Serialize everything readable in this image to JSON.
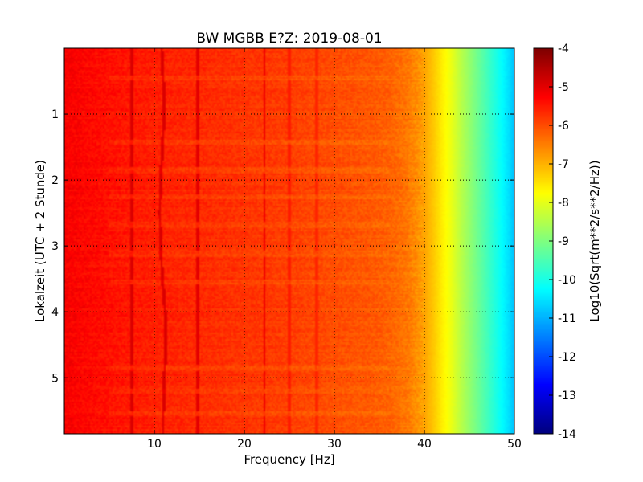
{
  "chart_data": {
    "type": "heatmap",
    "title": "BW MGBB E?Z: 2019-08-01",
    "xlabel": "Frequency [Hz]",
    "ylabel": "Lokalzeit (UTC + 2 Stunde)",
    "colorbar_label": "Log10(Sqrt(m**2/s**2/Hz))",
    "colormap": "jet",
    "xlim": [
      0,
      50
    ],
    "ylim": [
      5.85,
      0
    ],
    "clim": [
      -14,
      -4
    ],
    "x_ticks": [
      "10",
      "20",
      "30",
      "40",
      "50"
    ],
    "y_ticks": [
      "1",
      "2",
      "3",
      "4",
      "5"
    ],
    "colorbar_ticks": [
      "-4",
      "-5",
      "-6",
      "-7",
      "-8",
      "-9",
      "-10",
      "-11",
      "-12",
      "-13",
      "-14"
    ],
    "grid": true,
    "profile": {
      "frequency_hz": [
        0,
        5,
        10,
        15,
        20,
        25,
        30,
        34,
        36,
        38,
        39,
        40,
        41,
        42,
        43,
        44,
        45,
        46,
        47,
        48,
        49,
        49.5,
        50
      ],
      "log10_amplitude": [
        -5.2,
        -5.4,
        -5.55,
        -5.65,
        -5.75,
        -5.85,
        -6.0,
        -6.1,
        -6.2,
        -6.4,
        -6.6,
        -6.85,
        -7.2,
        -7.6,
        -7.95,
        -8.4,
        -8.8,
        -9.2,
        -9.6,
        -10.0,
        -10.4,
        -10.6,
        -10.9
      ]
    },
    "persistent_lines": [
      {
        "frequency_hz": 7.5,
        "log10_amplitude": -4.9
      },
      {
        "frequency_hz": 14.8,
        "log10_amplitude": -5.0
      },
      {
        "frequency_hz": 22.2,
        "log10_amplitude": -5.1
      },
      {
        "frequency_hz": 25.0,
        "log10_amplitude": -5.5
      },
      {
        "frequency_hz": 28.0,
        "log10_amplitude": -5.6
      }
    ],
    "drifting_line": {
      "time_h": [
        0.0,
        0.5,
        1.0,
        1.5,
        2.0,
        2.5,
        3.0,
        3.5,
        4.0,
        4.5,
        5.0,
        5.5,
        5.85
      ],
      "frequency_hz": [
        10.8,
        11.0,
        11.1,
        10.9,
        10.7,
        10.6,
        10.7,
        10.9,
        11.2,
        11.3,
        11.1,
        11.0,
        11.0
      ],
      "log10_amplitude": -4.9
    },
    "gap_times_h": [
      0.45,
      1.42,
      1.85,
      2.25,
      2.68,
      3.12,
      3.55,
      4.85,
      5.2,
      5.55
    ]
  }
}
